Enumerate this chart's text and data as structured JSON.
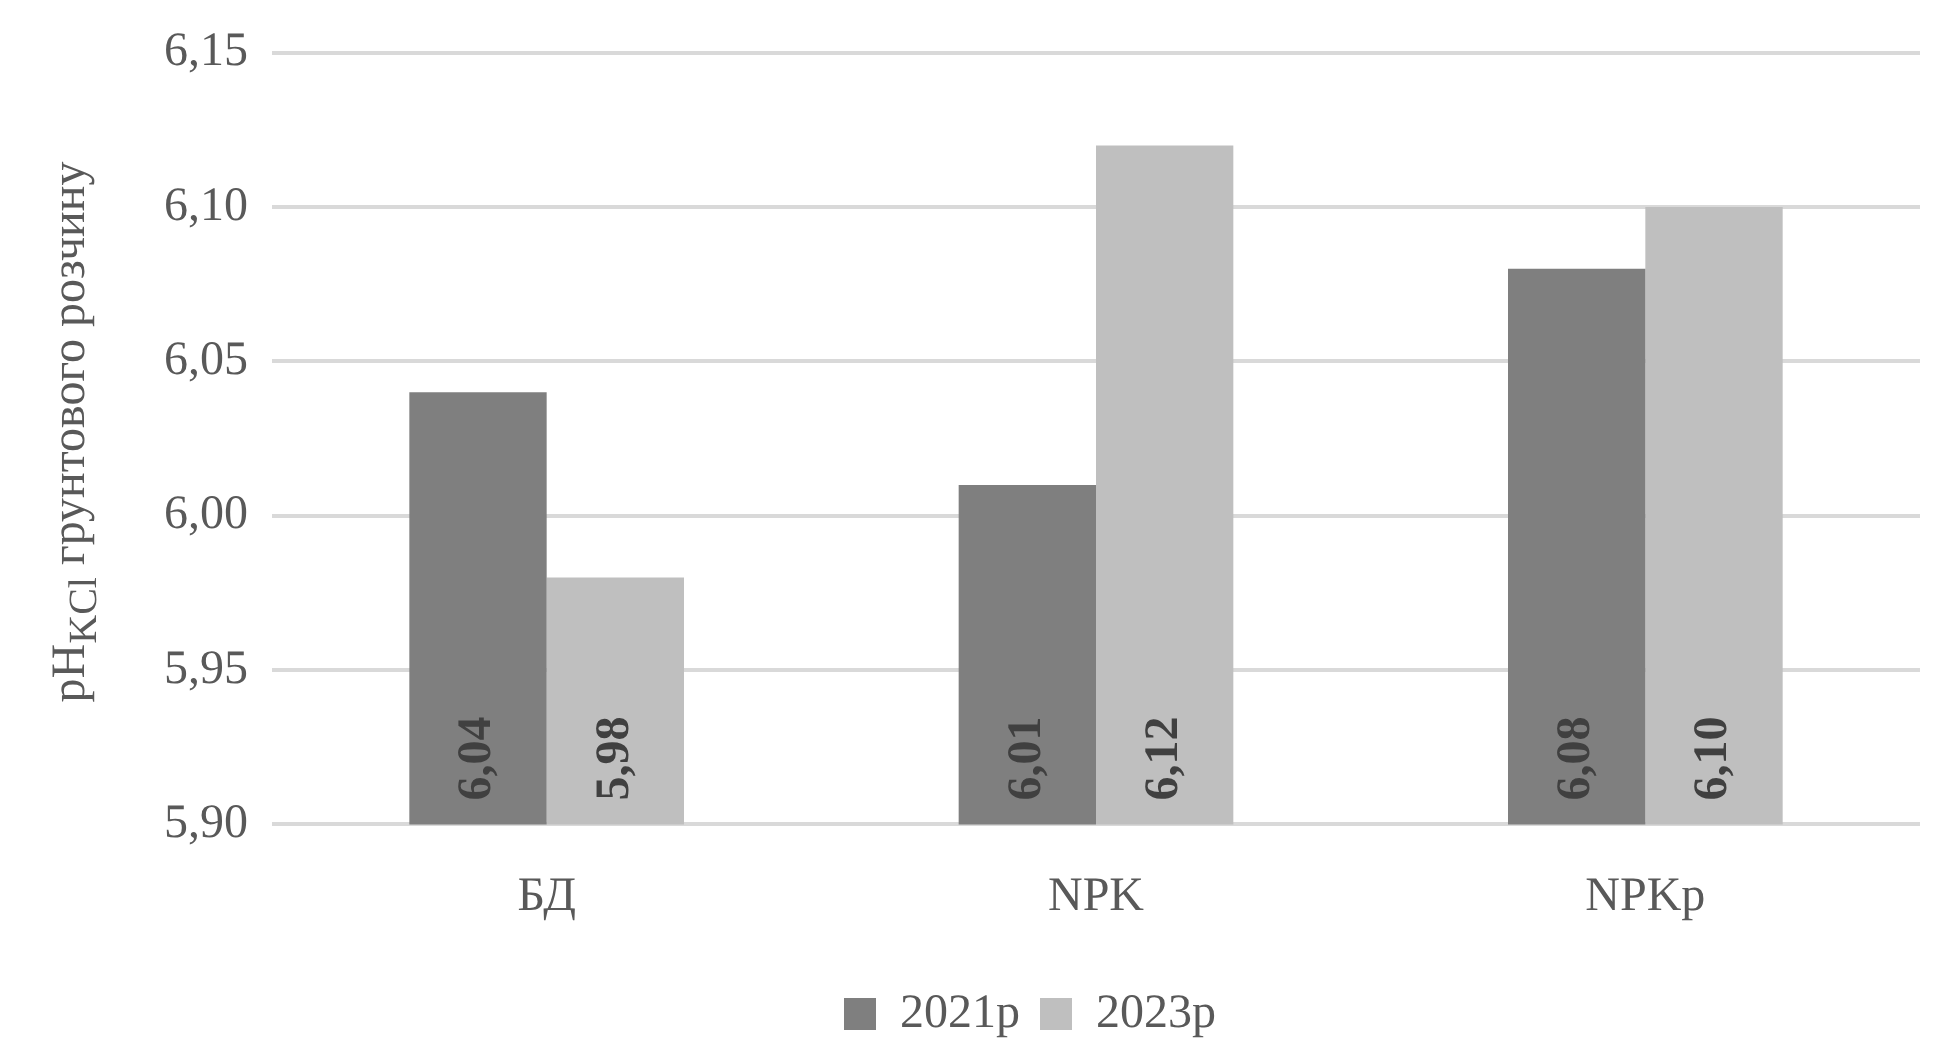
{
  "chart_data": {
    "type": "bar",
    "ylabel": "pH$_{KCl}$ грунтового розчину",
    "categories": [
      "БД",
      "NPK",
      "NPKр"
    ],
    "series": [
      {
        "name": "2021р",
        "color": "#7f7f7f",
        "values": [
          6.04,
          6.01,
          6.08
        ],
        "value_labels": [
          "6,04",
          "6,01",
          "6,08"
        ]
      },
      {
        "name": "2023р",
        "color": "#bfbfbf",
        "values": [
          5.98,
          6.12,
          6.1
        ],
        "value_labels": [
          "5,98",
          "6,12",
          "6,10"
        ]
      }
    ],
    "ylim": [
      5.9,
      6.15
    ],
    "yticks": [
      {
        "value": 5.9,
        "label": "5,90"
      },
      {
        "value": 5.95,
        "label": "5,95"
      },
      {
        "value": 6.0,
        "label": "6,00"
      },
      {
        "value": 6.05,
        "label": "6,05"
      },
      {
        "value": 6.1,
        "label": "6,10"
      },
      {
        "value": 6.15,
        "label": "6,15"
      }
    ],
    "grid": "y",
    "legend": "bottom"
  }
}
